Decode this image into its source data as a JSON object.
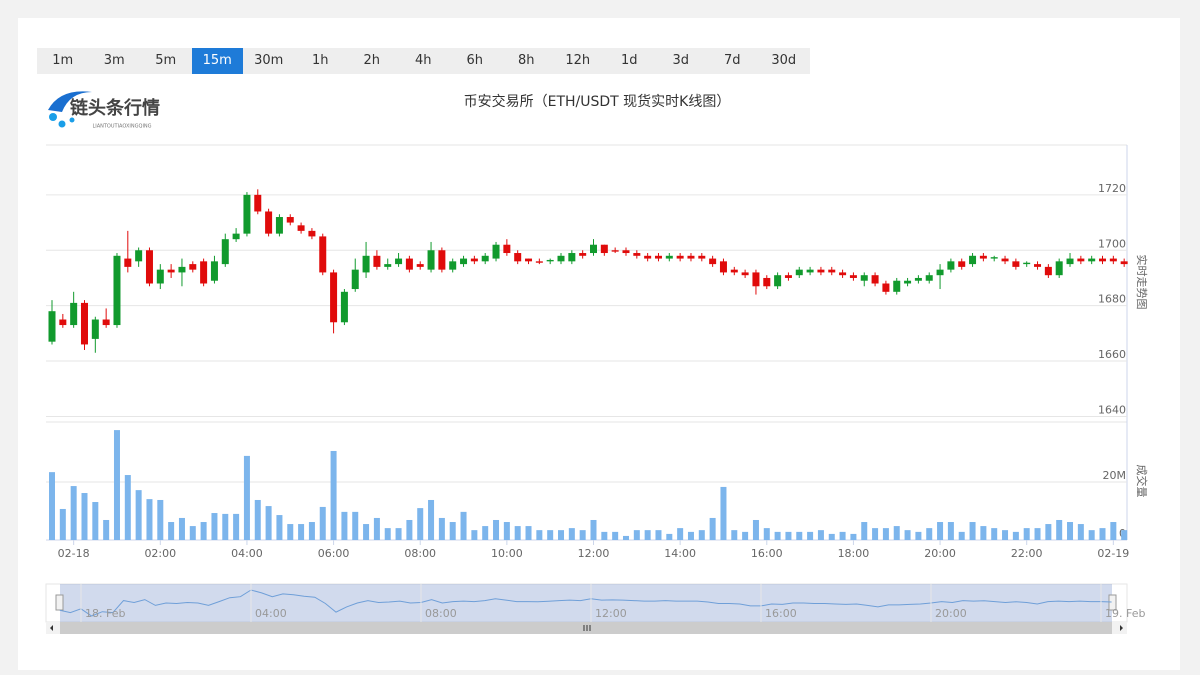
{
  "toolbar": {
    "intervals": [
      "1m",
      "3m",
      "5m",
      "15m",
      "30m",
      "1h",
      "2h",
      "4h",
      "6h",
      "8h",
      "12h",
      "1d",
      "3d",
      "7d",
      "30d"
    ],
    "active": 3
  },
  "logo": {
    "name": "链头条行情",
    "sub": "LIANTOUTIAOXINGQING"
  },
  "chart_data": {
    "type": "candlestick",
    "title": "币安交易所（ETH/USDT 现货实时K线图）",
    "y_label": "实时走势图",
    "up_color": "#119a2d",
    "down_color": "#e00b0b",
    "grid": true,
    "categories": [
      null,
      null,
      "02-18",
      null,
      null,
      null,
      null,
      null,
      null,
      null,
      "02:00",
      null,
      null,
      null,
      null,
      null,
      null,
      null,
      "04:00",
      null,
      null,
      null,
      null,
      null,
      null,
      null,
      "06:00",
      null,
      null,
      null,
      null,
      null,
      null,
      null,
      "08:00",
      null,
      null,
      null,
      null,
      null,
      null,
      null,
      "10:00",
      null,
      null,
      null,
      null,
      null,
      null,
      null,
      "12:00",
      null,
      null,
      null,
      null,
      null,
      null,
      null,
      "14:00",
      null,
      null,
      null,
      null,
      null,
      null,
      null,
      "16:00",
      null,
      null,
      null,
      null,
      null,
      null,
      null,
      "18:00",
      null,
      null,
      null,
      null,
      null,
      null,
      null,
      "20:00",
      null,
      null,
      null,
      null,
      null,
      null,
      null,
      "22:00",
      null,
      null,
      null,
      null,
      null,
      null,
      null,
      "02-19",
      null
    ],
    "open": [
      1667,
      1675,
      1673,
      1681,
      1668,
      1675,
      1673,
      1697,
      1696,
      1700,
      1688,
      1693,
      1692,
      1695,
      1696,
      1689,
      1695,
      1704,
      1706,
      1720,
      1714,
      1706,
      1712,
      1709,
      1707,
      1705,
      1692,
      1674,
      1686,
      1692,
      1698,
      1694,
      1695,
      1697,
      1695,
      1693,
      1700,
      1693,
      1695,
      1697,
      1696,
      1697,
      1702,
      1699,
      1697,
      1696,
      1696,
      1696,
      1696,
      1699,
      1699,
      1702,
      1700,
      1700,
      1699,
      1698,
      1698,
      1697,
      1698,
      1698,
      1698,
      1697,
      1696,
      1693,
      1692,
      1692,
      1690,
      1687,
      1691,
      1691,
      1692,
      1693,
      1693,
      1692,
      1691,
      1689,
      1691,
      1688,
      1685,
      1688,
      1689,
      1689,
      1691,
      1693,
      1696,
      1695,
      1698,
      1697,
      1697,
      1696,
      1695,
      1695,
      1694,
      1691,
      1695,
      1697,
      1696,
      1697,
      1697,
      1696
    ],
    "high": [
      1682,
      1677,
      1685,
      1682,
      1676,
      1679,
      1699,
      1707,
      1701,
      1701,
      1695,
      1695,
      1697,
      1696,
      1697,
      1698,
      1706,
      1708,
      1721,
      1722,
      1715,
      1713,
      1713,
      1710,
      1708,
      1706,
      1693,
      1686,
      1697,
      1703,
      1700,
      1697,
      1699,
      1698,
      1696,
      1703,
      1701,
      1697,
      1698,
      1698,
      1699,
      1703,
      1704,
      1700,
      1697,
      1697,
      1697,
      1699,
      1700,
      1700,
      1704,
      1702,
      1701,
      1701,
      1700,
      1699,
      1699,
      1699,
      1699,
      1699,
      1699,
      1698,
      1697,
      1694,
      1693,
      1693,
      1691,
      1692,
      1692,
      1694,
      1694,
      1694,
      1694,
      1693,
      1692,
      1692,
      1692,
      1689,
      1690,
      1690,
      1691,
      1692,
      1695,
      1697,
      1697,
      1699,
      1699,
      1698,
      1698,
      1697,
      1696,
      1696,
      1695,
      1697,
      1699,
      1698,
      1698,
      1698,
      1698,
      1697
    ],
    "low": [
      1666,
      1672,
      1672,
      1664,
      1663,
      1672,
      1672,
      1692,
      1694,
      1687,
      1686,
      1690,
      1687,
      1692,
      1687,
      1688,
      1694,
      1703,
      1705,
      1713,
      1705,
      1705,
      1709,
      1706,
      1704,
      1691,
      1670,
      1673,
      1685,
      1690,
      1693,
      1693,
      1694,
      1692,
      1693,
      1692,
      1692,
      1692,
      1694,
      1695,
      1695,
      1696,
      1698,
      1695,
      1695,
      1695,
      1695,
      1695,
      1695,
      1697,
      1698,
      1698,
      1699,
      1698,
      1697,
      1696,
      1696,
      1696,
      1696,
      1696,
      1696,
      1694,
      1691,
      1691,
      1690,
      1684,
      1686,
      1686,
      1689,
      1690,
      1691,
      1691,
      1691,
      1690,
      1689,
      1687,
      1687,
      1684,
      1684,
      1687,
      1688,
      1688,
      1686,
      1692,
      1693,
      1694,
      1696,
      1696,
      1695,
      1693,
      1694,
      1693,
      1690,
      1690,
      1694,
      1695,
      1695,
      1695,
      1695,
      1694
    ],
    "close": [
      1678,
      1673,
      1681,
      1666,
      1675,
      1673,
      1698,
      1694,
      1700,
      1688,
      1693,
      1692,
      1694,
      1693,
      1688,
      1696,
      1704,
      1706,
      1720,
      1714,
      1706,
      1712,
      1710,
      1707,
      1705,
      1692,
      1674,
      1685,
      1693,
      1698,
      1694,
      1695,
      1697,
      1693,
      1694,
      1700,
      1693,
      1696,
      1697,
      1696,
      1698,
      1702,
      1699,
      1696,
      1696,
      1695.5,
      1696.5,
      1698,
      1699,
      1698,
      1702,
      1699,
      1699.5,
      1699,
      1698,
      1697,
      1697,
      1698,
      1697,
      1697,
      1697,
      1695,
      1692,
      1692,
      1691,
      1687,
      1687,
      1691,
      1690,
      1693,
      1693,
      1692,
      1692,
      1691,
      1690,
      1691,
      1688,
      1685,
      1689,
      1689,
      1690,
      1691,
      1693,
      1696,
      1694,
      1698,
      1697,
      1697.5,
      1696,
      1694,
      1695.5,
      1694,
      1691,
      1696,
      1697,
      1696,
      1697,
      1696,
      1696,
      1695
    ],
    "ylim": [
      1638,
      1738
    ],
    "yticks": [
      1640,
      1660,
      1680,
      1700,
      1720
    ],
    "volume": {
      "label": "成交量",
      "color": "#7cb5ec",
      "values": [
        23.4,
        10.7,
        18.6,
        16.2,
        13.1,
        6.9,
        37.9,
        22.4,
        17.2,
        14.1,
        13.8,
        6.2,
        7.6,
        4.8,
        6.2,
        9.3,
        9,
        9,
        29,
        13.8,
        11.7,
        8.6,
        5.5,
        5.5,
        6.2,
        11.4,
        30.7,
        9.7,
        9.7,
        5.5,
        7.6,
        4.1,
        4.1,
        6.9,
        11,
        13.8,
        7.6,
        6.2,
        9.7,
        3.4,
        4.8,
        6.9,
        6.2,
        4.8,
        4.8,
        3.4,
        3.4,
        3.4,
        4.1,
        3.4,
        6.9,
        2.8,
        2.8,
        1.4,
        3.4,
        3.4,
        3.4,
        2.1,
        4.1,
        2.8,
        3.4,
        7.6,
        18.3,
        3.4,
        2.8,
        6.9,
        4.1,
        2.8,
        2.8,
        2.8,
        2.8,
        3.4,
        2.1,
        2.8,
        2.1,
        6.2,
        4.1,
        4.1,
        4.8,
        3.4,
        2.8,
        4.1,
        6.2,
        6.2,
        2.8,
        6.2,
        4.8,
        4.1,
        3.4,
        2.8,
        4.1,
        4.1,
        5.5,
        6.9,
        6.2,
        5.5,
        3.4,
        4.1,
        6.2,
        3.4
      ],
      "ylim": [
        0,
        40
      ],
      "yticks": [
        0,
        {
          "value": 20,
          "label": "20M"
        }
      ]
    },
    "navigator": {
      "labels": [
        "18. Feb",
        "04:00",
        "08:00",
        "12:00",
        "16:00",
        "20:00",
        "19. Feb"
      ]
    }
  }
}
